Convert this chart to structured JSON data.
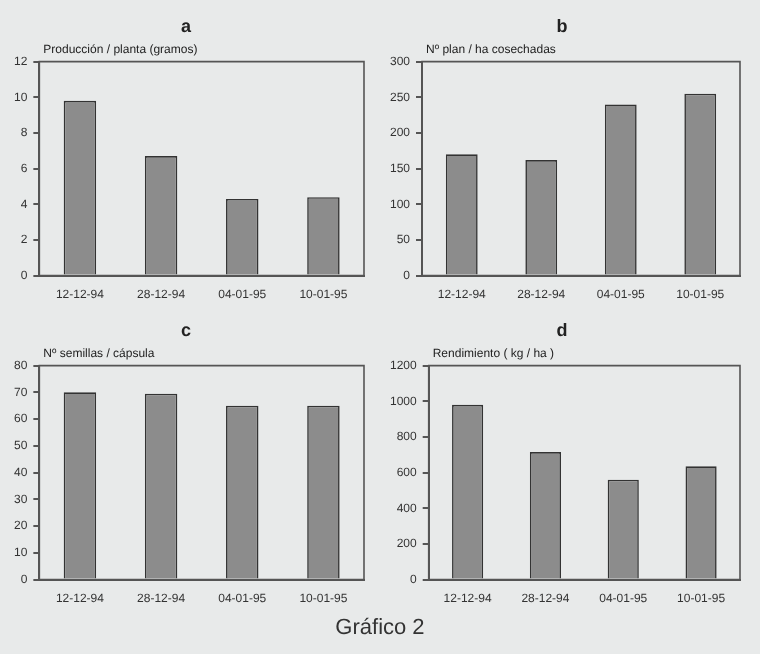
{
  "chart_data": [
    {
      "type": "bar",
      "title": "a",
      "ylabel": "Producción / planta (gramos)",
      "categories": [
        "12-12-94",
        "28-12-94",
        "04-01-95",
        "10-01-95"
      ],
      "values": [
        9.8,
        6.7,
        4.3,
        4.4
      ],
      "color": "#8c8c8c",
      "ylim": [
        0,
        12
      ],
      "yticks": [
        0,
        2,
        4,
        6,
        8,
        10,
        12
      ],
      "grid": false
    },
    {
      "type": "bar",
      "title": "b",
      "ylabel": "Nº plan / ha cosechadas",
      "categories": [
        "12-12-94",
        "28-12-94",
        "04-01-95",
        "10-01-95"
      ],
      "values": [
        170,
        162,
        240,
        255
      ],
      "color": "#8c8c8c",
      "ylim": [
        0,
        300
      ],
      "yticks": [
        0,
        50,
        100,
        150,
        200,
        250,
        300
      ],
      "grid": false
    },
    {
      "type": "bar",
      "title": "c",
      "ylabel": "Nº semillas / cápsula",
      "categories": [
        "12-12-94",
        "28-12-94",
        "04-01-95",
        "10-01-95"
      ],
      "values": [
        70,
        69.5,
        65,
        65
      ],
      "color": "#8c8c8c",
      "ylim": [
        0,
        80
      ],
      "yticks": [
        0,
        10,
        20,
        30,
        40,
        50,
        60,
        70,
        80
      ],
      "grid": false
    },
    {
      "type": "bar",
      "title": "d",
      "ylabel": "Rendimiento ( kg / ha )",
      "categories": [
        "12-12-94",
        "28-12-94",
        "04-01-95",
        "10-01-95"
      ],
      "values": [
        980,
        715,
        560,
        635
      ],
      "color": "#8c8c8c",
      "ylim": [
        0,
        1200
      ],
      "yticks": [
        0,
        200,
        400,
        600,
        800,
        1000,
        1200
      ],
      "grid": false,
      "annotations": [
        "Gráfico 2"
      ]
    }
  ]
}
